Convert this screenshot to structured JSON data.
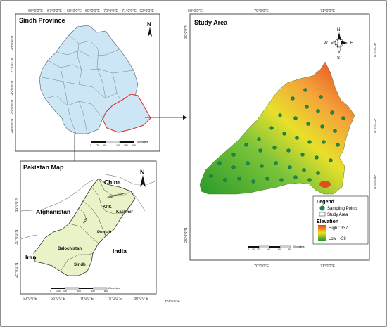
{
  "sindh_panel": {
    "title": "Sindh Province",
    "top_ticks": [
      "66°0'0\"E",
      "67°0'0\"E",
      "68°0'0\"E",
      "69°0'0\"E",
      "70°0'0\"E",
      "71°0'0\"E",
      "72°0'0\"E"
    ],
    "left_ticks": [
      "28°0'0\"N",
      "27°0'0\"N",
      "26°0'0\"N",
      "25°0'0\"N",
      "24°0'0\"N"
    ],
    "scale_labels": [
      "0",
      "25",
      "50",
      "100",
      "150",
      "200"
    ],
    "scale_unit": "Kilometers",
    "north_label": "N",
    "colors": {
      "province_fill": "#cde6f5",
      "district_line": "#6f8090",
      "study_outline": "#e03030"
    }
  },
  "pakistan_panel": {
    "title": "Pakistan Map",
    "bottom_ticks": [
      "60°0'0\"E",
      "65°0'0\"E",
      "70°0'0\"E",
      "75°0'0\"E",
      "80°0'0\"E"
    ],
    "left_ticks": [
      "35°0'0\"N",
      "30°0'0\"N",
      "25°0'0\"N"
    ],
    "countries": [
      "China",
      "Afghanistan",
      "Iran",
      "India"
    ],
    "provinces": [
      "Gilgit-Baltistan",
      "KPK",
      "Kashmir",
      "Punjab",
      "FATA",
      "Balochistan",
      "Sindh"
    ],
    "north_label": "N",
    "scale_labels": [
      "0",
      "100",
      "200",
      "400",
      "600",
      "800"
    ],
    "scale_unit": "Kilometers",
    "colors": {
      "country_fill": "#ffffff",
      "pakistan_fill": "#e8f4c8",
      "border": "#333333"
    }
  },
  "study_panel": {
    "title": "Study Area",
    "top_ticks": [
      "69°0'0\"E",
      "70°0'0\"E",
      "71°0'0\"E"
    ],
    "bottom_ticks": [
      "70°0'0\"E",
      "71°0'0\"E"
    ],
    "left_ticks": [
      "26°0'0\"N",
      "25°0'0\"N"
    ],
    "right_ticks": [
      "26°0'0\"N",
      "25°0'0\"N",
      "24°0'0\"N"
    ],
    "outer_tick": "69°0'0\"E",
    "compass": {
      "n": "N",
      "s": "S",
      "e": "E",
      "w": "W"
    },
    "legend": {
      "title": "Legend",
      "sampling_points": "Sampling Points",
      "study_area": "Study Area",
      "elevation_title": "Elevation",
      "high": "High : 337",
      "low": "Low : -39"
    },
    "scale_labels": [
      "0",
      "10",
      "20",
      "40",
      "60",
      "80"
    ],
    "scale_unit": "Kilometers",
    "colors": {
      "elev_high": "#e53b1c",
      "elev_mid": "#f5e21b",
      "elev_low": "#2a9a2a",
      "point_fill": "#1a8a4a"
    }
  }
}
